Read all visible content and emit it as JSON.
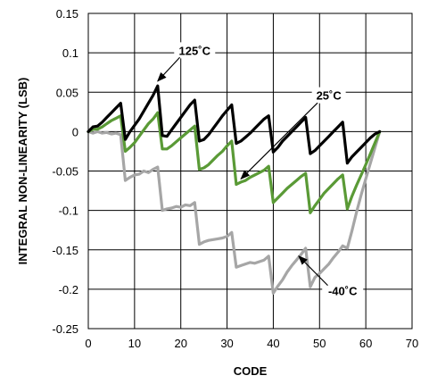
{
  "chart_data": {
    "type": "line",
    "title": "",
    "xlabel": "CODE",
    "ylabel": "INTEGRAL NON-LINEARITY (LSB)",
    "xlim": [
      0,
      70
    ],
    "ylim": [
      -0.25,
      0.15
    ],
    "x_ticks": [
      0,
      10,
      20,
      30,
      40,
      50,
      60,
      70
    ],
    "y_ticks": [
      0.15,
      0.1,
      0.05,
      0,
      -0.05,
      -0.1,
      -0.15,
      -0.2,
      -0.25
    ],
    "y_tick_labels": [
      "0.15",
      "0.1",
      "0.05",
      "0",
      "-0.05",
      "-0.1",
      "-0.15",
      "-0.2",
      "-0.25"
    ],
    "grid": true,
    "series": [
      {
        "name": "125˚C",
        "color": "#000000",
        "points": [
          [
            0,
            0
          ],
          [
            1,
            0.006
          ],
          [
            2,
            0.007
          ],
          [
            3,
            0.012
          ],
          [
            4,
            0.018
          ],
          [
            5,
            0.024
          ],
          [
            6,
            0.03
          ],
          [
            7,
            0.036
          ],
          [
            8,
            -0.01
          ],
          [
            9,
            0
          ],
          [
            10,
            0.008
          ],
          [
            11,
            0.016
          ],
          [
            12,
            0.026
          ],
          [
            13,
            0.036
          ],
          [
            14,
            0.046
          ],
          [
            15,
            0.058
          ],
          [
            16,
            -0.005
          ],
          [
            17,
            -0.006
          ],
          [
            18,
            0.002
          ],
          [
            19,
            0.01
          ],
          [
            20,
            0.018
          ],
          [
            21,
            0.026
          ],
          [
            22,
            0.034
          ],
          [
            23,
            0.04
          ],
          [
            24,
            -0.012
          ],
          [
            25,
            -0.01
          ],
          [
            26,
            -0.004
          ],
          [
            27,
            0.004
          ],
          [
            28,
            0.012
          ],
          [
            29,
            0.02
          ],
          [
            30,
            0.027
          ],
          [
            31,
            0.034
          ],
          [
            32,
            -0.015
          ],
          [
            33,
            -0.012
          ],
          [
            34,
            -0.007
          ],
          [
            35,
            -0.002
          ],
          [
            36,
            0.004
          ],
          [
            37,
            0.01
          ],
          [
            38,
            0.016
          ],
          [
            39,
            0.02
          ],
          [
            40,
            -0.026
          ],
          [
            41,
            -0.02
          ],
          [
            42,
            -0.012
          ],
          [
            43,
            -0.006
          ],
          [
            44,
            0
          ],
          [
            45,
            0.006
          ],
          [
            46,
            0.012
          ],
          [
            47,
            0.018
          ],
          [
            48,
            -0.028
          ],
          [
            49,
            -0.024
          ],
          [
            50,
            -0.018
          ],
          [
            51,
            -0.012
          ],
          [
            52,
            -0.006
          ],
          [
            53,
            0
          ],
          [
            54,
            0.006
          ],
          [
            55,
            0.012
          ],
          [
            56,
            -0.04
          ],
          [
            57,
            -0.032
          ],
          [
            58,
            -0.026
          ],
          [
            59,
            -0.02
          ],
          [
            60,
            -0.014
          ],
          [
            61,
            -0.008
          ],
          [
            62,
            -0.003
          ],
          [
            63,
            0
          ]
        ]
      },
      {
        "name": "25˚C",
        "color": "#5a9a36",
        "points": [
          [
            0,
            0
          ],
          [
            1,
            0.003
          ],
          [
            2,
            0.003
          ],
          [
            3,
            0.006
          ],
          [
            4,
            0.01
          ],
          [
            5,
            0.014
          ],
          [
            6,
            0.017
          ],
          [
            7,
            0.02
          ],
          [
            8,
            -0.025
          ],
          [
            9,
            -0.02
          ],
          [
            10,
            -0.014
          ],
          [
            11,
            -0.006
          ],
          [
            12,
            0.002
          ],
          [
            13,
            0.01
          ],
          [
            14,
            0.016
          ],
          [
            15,
            0.024
          ],
          [
            16,
            -0.022
          ],
          [
            17,
            -0.022
          ],
          [
            18,
            -0.018
          ],
          [
            19,
            -0.013
          ],
          [
            20,
            -0.008
          ],
          [
            21,
            -0.003
          ],
          [
            22,
            0.002
          ],
          [
            23,
            0.007
          ],
          [
            24,
            -0.048
          ],
          [
            25,
            -0.046
          ],
          [
            26,
            -0.042
          ],
          [
            27,
            -0.036
          ],
          [
            28,
            -0.03
          ],
          [
            29,
            -0.025
          ],
          [
            30,
            -0.018
          ],
          [
            31,
            -0.012
          ],
          [
            32,
            -0.067
          ],
          [
            33,
            -0.064
          ],
          [
            34,
            -0.062
          ],
          [
            35,
            -0.058
          ],
          [
            36,
            -0.055
          ],
          [
            37,
            -0.052
          ],
          [
            38,
            -0.049
          ],
          [
            39,
            -0.044
          ],
          [
            40,
            -0.09
          ],
          [
            41,
            -0.084
          ],
          [
            42,
            -0.078
          ],
          [
            43,
            -0.072
          ],
          [
            44,
            -0.067
          ],
          [
            45,
            -0.062
          ],
          [
            46,
            -0.057
          ],
          [
            47,
            -0.053
          ],
          [
            48,
            -0.103
          ],
          [
            49,
            -0.094
          ],
          [
            50,
            -0.086
          ],
          [
            51,
            -0.078
          ],
          [
            52,
            -0.072
          ],
          [
            53,
            -0.066
          ],
          [
            54,
            -0.06
          ],
          [
            55,
            -0.055
          ],
          [
            56,
            -0.098
          ],
          [
            57,
            -0.082
          ],
          [
            58,
            -0.068
          ],
          [
            59,
            -0.055
          ],
          [
            60,
            -0.042
          ],
          [
            61,
            -0.028
          ],
          [
            62,
            -0.014
          ],
          [
            63,
            0
          ]
        ]
      },
      {
        "name": "-40˚C",
        "color": "#a6a6a6",
        "points": [
          [
            0,
            0
          ],
          [
            1,
            -0.002
          ],
          [
            2,
            0
          ],
          [
            3,
            -0.002
          ],
          [
            4,
            -0.001
          ],
          [
            5,
            -0.003
          ],
          [
            6,
            -0.002
          ],
          [
            7,
            -0.004
          ],
          [
            8,
            -0.062
          ],
          [
            9,
            -0.058
          ],
          [
            10,
            -0.055
          ],
          [
            11,
            -0.054
          ],
          [
            12,
            -0.05
          ],
          [
            13,
            -0.052
          ],
          [
            14,
            -0.048
          ],
          [
            15,
            -0.045
          ],
          [
            16,
            -0.1
          ],
          [
            17,
            -0.098
          ],
          [
            18,
            -0.097
          ],
          [
            19,
            -0.095
          ],
          [
            20,
            -0.096
          ],
          [
            21,
            -0.093
          ],
          [
            22,
            -0.094
          ],
          [
            23,
            -0.09
          ],
          [
            24,
            -0.143
          ],
          [
            25,
            -0.14
          ],
          [
            26,
            -0.138
          ],
          [
            27,
            -0.137
          ],
          [
            28,
            -0.136
          ],
          [
            29,
            -0.135
          ],
          [
            30,
            -0.133
          ],
          [
            31,
            -0.128
          ],
          [
            32,
            -0.172
          ],
          [
            33,
            -0.17
          ],
          [
            34,
            -0.168
          ],
          [
            35,
            -0.166
          ],
          [
            36,
            -0.167
          ],
          [
            37,
            -0.165
          ],
          [
            38,
            -0.163
          ],
          [
            39,
            -0.158
          ],
          [
            40,
            -0.205
          ],
          [
            41,
            -0.196
          ],
          [
            42,
            -0.188
          ],
          [
            43,
            -0.178
          ],
          [
            44,
            -0.17
          ],
          [
            45,
            -0.163
          ],
          [
            46,
            -0.156
          ],
          [
            47,
            -0.148
          ],
          [
            48,
            -0.197
          ],
          [
            49,
            -0.185
          ],
          [
            50,
            -0.18
          ],
          [
            51,
            -0.174
          ],
          [
            52,
            -0.168
          ],
          [
            53,
            -0.16
          ],
          [
            54,
            -0.153
          ],
          [
            55,
            -0.145
          ],
          [
            56,
            -0.148
          ],
          [
            57,
            -0.126
          ],
          [
            58,
            -0.102
          ],
          [
            59,
            -0.08
          ],
          [
            60,
            -0.06
          ],
          [
            61,
            -0.04
          ],
          [
            62,
            -0.02
          ],
          [
            63,
            0
          ]
        ]
      }
    ],
    "annotations": [
      {
        "text": "125˚C",
        "series": "125˚C",
        "label_xy": [
          23,
          0.102
        ],
        "arrow_to": [
          15,
          0.064
        ]
      },
      {
        "text": "25˚C",
        "series": "25˚C",
        "label_xy": [
          52,
          0.045
        ],
        "arrow_to": [
          33,
          -0.06
        ]
      },
      {
        "text": "-40˚C",
        "series": "-40˚C",
        "label_xy": [
          55,
          -0.203
        ],
        "arrow_to": [
          45.5,
          -0.158
        ]
      }
    ]
  }
}
